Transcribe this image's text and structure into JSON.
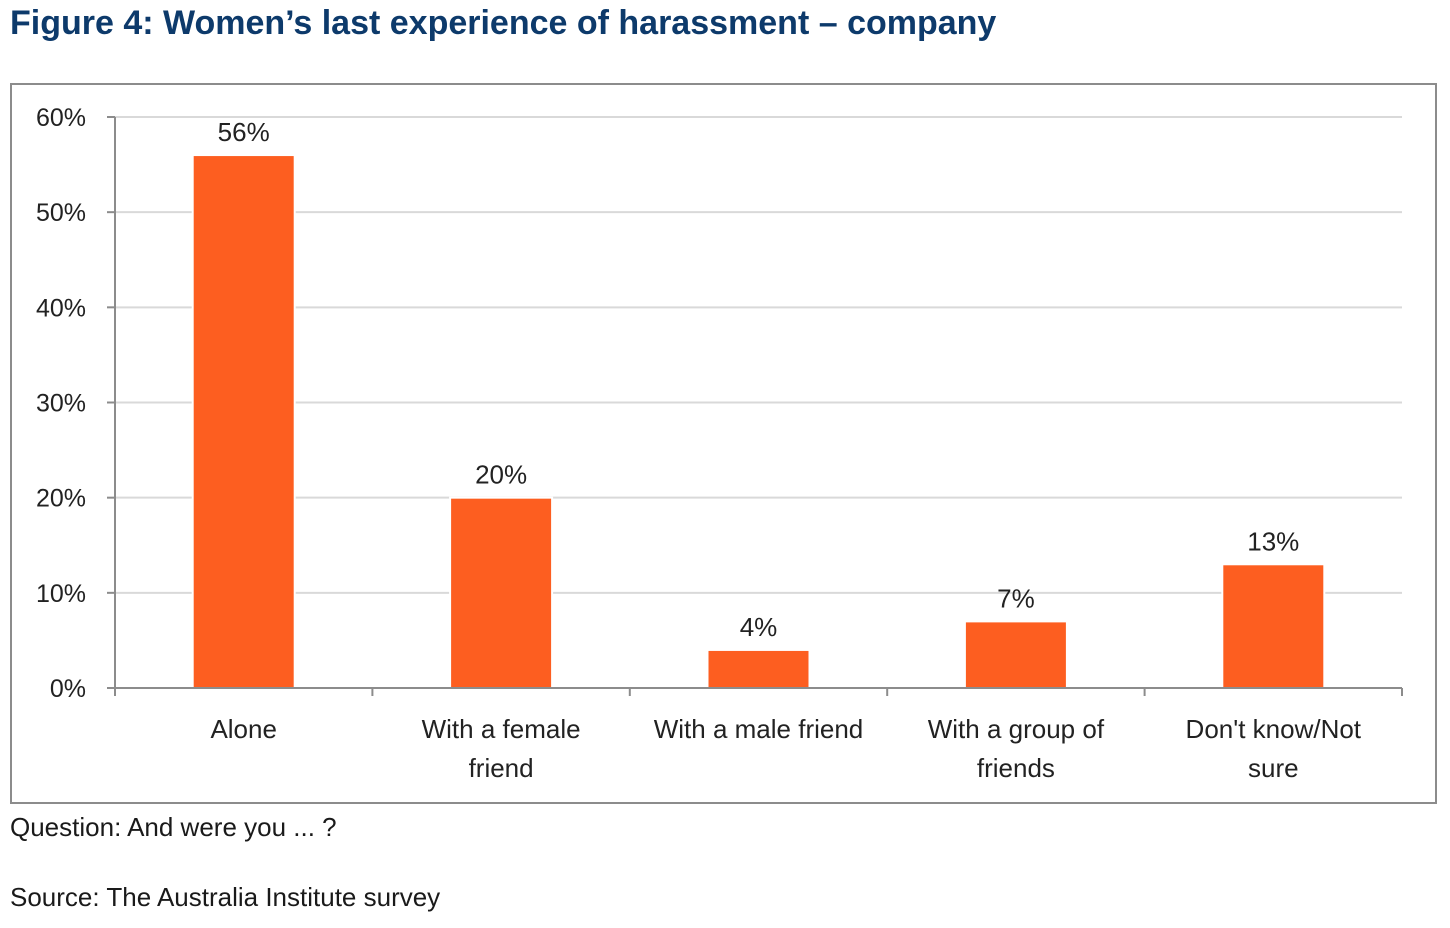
{
  "figure": {
    "title": "Figure 4: Women’s last experience of harassment – company",
    "question": "Question: And were you ... ?",
    "source": "Source: The Australia Institute survey"
  },
  "chart_data": {
    "type": "bar",
    "categories": [
      "Alone",
      "With a female friend",
      "With a male friend",
      "With a group of friends",
      "Don't know/Not sure"
    ],
    "category_label_lines": [
      [
        "Alone"
      ],
      [
        "With a female",
        "friend"
      ],
      [
        "With a male friend"
      ],
      [
        "With a group of",
        "friends"
      ],
      [
        "Don't know/Not",
        "sure"
      ]
    ],
    "values": [
      56,
      20,
      4,
      7,
      13
    ],
    "data_labels": [
      "56%",
      "20%",
      "4%",
      "7%",
      "13%"
    ],
    "ylim": [
      0,
      60
    ],
    "yticks": [
      0,
      10,
      20,
      30,
      40,
      50,
      60
    ],
    "ytick_labels": [
      "0%",
      "10%",
      "20%",
      "30%",
      "40%",
      "50%",
      "60%"
    ],
    "grid": true,
    "legend": "none",
    "bar_color": "#fd5e20",
    "grid_color": "#d9d9d9",
    "axis_color": "#8c8c8c",
    "title": "",
    "xlabel": "",
    "ylabel": ""
  }
}
